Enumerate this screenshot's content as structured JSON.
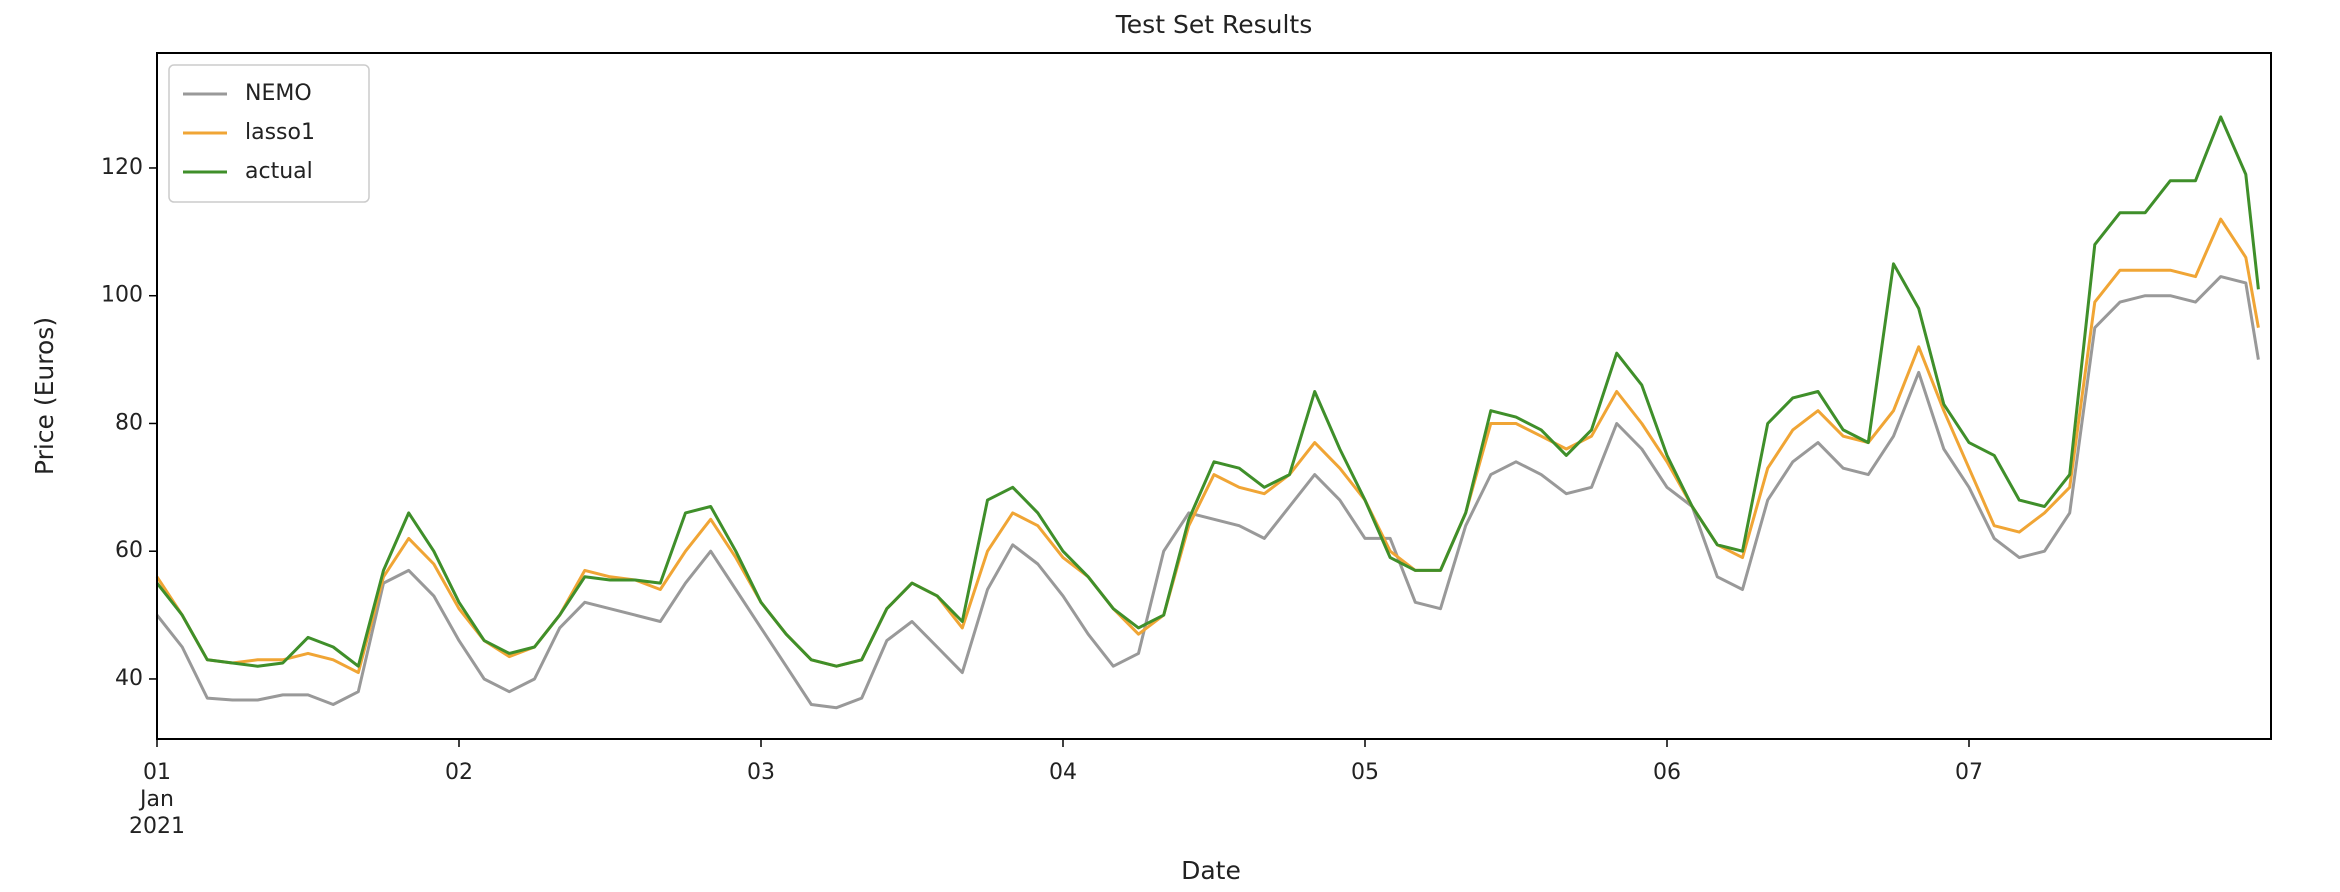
{
  "chart_data": {
    "type": "line",
    "title": "Test Set Results",
    "xlabel": "Date",
    "ylabel": "Price (Euros)",
    "x": [
      0,
      2,
      4,
      6,
      8,
      10,
      12,
      14,
      16,
      18,
      20,
      22,
      24,
      26,
      28,
      30,
      32,
      34,
      36,
      38,
      40,
      42,
      44,
      46,
      48,
      50,
      52,
      54,
      56,
      58,
      60,
      62,
      64,
      66,
      68,
      70,
      72,
      74,
      76,
      78,
      80,
      82,
      84,
      86,
      88,
      90,
      92,
      94,
      96,
      98,
      100,
      102,
      104,
      106,
      108,
      110,
      112,
      114,
      116,
      118,
      120,
      122,
      124,
      126,
      128,
      130,
      132,
      134,
      136,
      138,
      140,
      142,
      144,
      146,
      148,
      150,
      152,
      154,
      156,
      158,
      160,
      162,
      164,
      166,
      167
    ],
    "series": [
      {
        "name": "NEMO",
        "color": "#999999",
        "values": [
          50,
          45,
          37,
          36.7,
          36.7,
          37.5,
          37.5,
          36,
          38,
          55,
          57,
          53,
          46,
          40,
          38,
          40,
          48,
          52,
          51,
          50,
          49,
          55,
          60,
          54,
          48,
          42,
          36,
          35.5,
          37,
          46,
          49,
          45,
          41,
          54,
          61,
          58,
          53,
          47,
          42,
          44,
          60,
          66,
          65,
          64,
          62,
          67,
          72,
          68,
          62,
          62,
          52,
          51,
          64,
          72,
          74,
          72,
          69,
          70,
          80,
          76,
          70,
          67,
          56,
          54,
          68,
          74,
          77,
          73,
          72,
          78,
          88,
          76,
          70,
          62,
          59,
          60,
          66,
          95,
          99,
          100,
          100,
          99,
          103,
          102,
          90
        ]
      },
      {
        "name": "lasso1",
        "color": "#f0a535",
        "values": [
          56,
          50,
          43,
          42.5,
          43,
          43,
          44,
          43,
          41,
          56,
          62,
          58,
          51,
          46,
          43.5,
          45,
          50,
          57,
          56,
          55.5,
          54,
          60,
          65,
          59,
          52,
          47,
          43,
          42,
          43,
          51,
          55,
          53,
          48,
          60,
          66,
          64,
          59,
          56,
          51,
          47,
          50,
          64,
          72,
          70,
          69,
          72,
          77,
          73,
          68,
          60,
          57,
          57,
          66,
          80,
          80,
          78,
          76,
          78,
          85,
          80,
          74,
          67,
          61,
          59,
          73,
          79,
          82,
          78,
          77,
          82,
          92,
          82,
          73,
          64,
          63,
          66,
          70,
          99,
          104,
          104,
          104,
          103,
          112,
          106,
          95
        ]
      },
      {
        "name": "actual",
        "color": "#3f8f2a",
        "values": [
          55,
          50,
          43,
          42.5,
          42,
          42.5,
          46.5,
          45,
          42,
          57,
          66,
          60,
          52,
          46,
          44,
          45,
          50,
          56,
          55.5,
          55.5,
          55,
          66,
          67,
          60,
          52,
          47,
          43,
          42,
          43,
          51,
          55,
          53,
          49,
          68,
          70,
          66,
          60,
          56,
          51,
          48,
          50,
          65,
          74,
          73,
          70,
          72,
          85,
          76,
          68,
          59,
          57,
          57,
          66,
          82,
          81,
          79,
          75,
          79,
          91,
          86,
          75,
          67,
          61,
          60,
          80,
          84,
          85,
          79,
          77,
          105,
          98,
          83,
          77,
          75,
          68,
          67,
          72,
          108,
          113,
          113,
          118,
          118,
          128,
          119,
          101
        ]
      }
    ],
    "xlim": [
      0,
      168
    ],
    "xticks": [
      {
        "value": 0,
        "label": "01\nJan\n2021"
      },
      {
        "value": 24,
        "label": "02"
      },
      {
        "value": 48,
        "label": "03"
      },
      {
        "value": 72,
        "label": "04"
      },
      {
        "value": 96,
        "label": "05"
      },
      {
        "value": 120,
        "label": "06"
      },
      {
        "value": 144,
        "label": "07"
      }
    ],
    "ylim": [
      30.6,
      138
    ],
    "yticks": [
      40,
      60,
      80,
      100,
      120
    ],
    "legend": "upper left"
  }
}
